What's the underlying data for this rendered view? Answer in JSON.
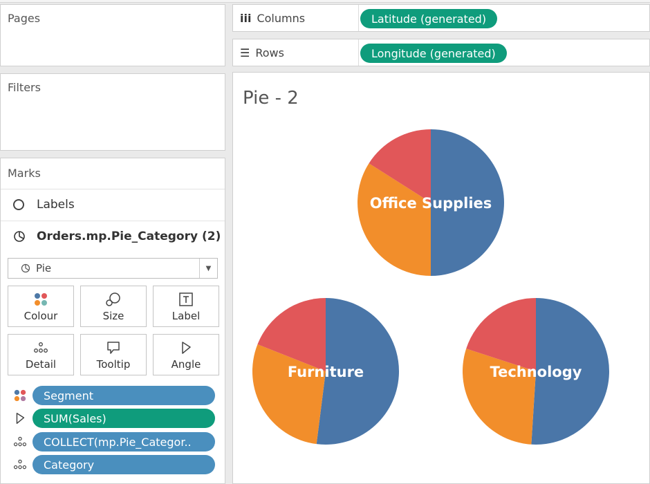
{
  "pages": {
    "title": "Pages"
  },
  "filters": {
    "title": "Filters"
  },
  "shelves": {
    "columns": {
      "label": "Columns",
      "icon": "columns-icon",
      "pill": "Latitude (generated)"
    },
    "rows": {
      "label": "Rows",
      "icon": "rows-icon",
      "pill": "Longitude (generated)"
    }
  },
  "marks": {
    "title": "Marks",
    "labels_row": "Labels",
    "layer_row": "Orders.mp.Pie_Category (2)",
    "mark_type": "Pie",
    "buttons": [
      {
        "label": "Colour",
        "icon": "colour-icon"
      },
      {
        "label": "Size",
        "icon": "size-icon"
      },
      {
        "label": "Label",
        "icon": "label-icon"
      },
      {
        "label": "Detail",
        "icon": "detail-icon"
      },
      {
        "label": "Tooltip",
        "icon": "tooltip-icon"
      },
      {
        "label": "Angle",
        "icon": "angle-icon"
      }
    ],
    "fields": [
      {
        "label": "Segment",
        "icon": "colour-icon",
        "color": "#4a8fbe"
      },
      {
        "label": "SUM(Sales)",
        "icon": "angle-icon",
        "color": "#0f9c7c"
      },
      {
        "label": "COLLECT(mp.Pie_Categor..",
        "icon": "detail-icon",
        "color": "#4a8fbe"
      },
      {
        "label": "Category",
        "icon": "detail-icon",
        "color": "#4a8fbe"
      }
    ]
  },
  "chart_data": {
    "type": "pie",
    "title": "Pie - 2",
    "slice_colors": [
      "#4a76a8",
      "#f28e2b",
      "#e15759"
    ],
    "pies": [
      {
        "label": "Office Supplies",
        "values": [
          50,
          34,
          16
        ]
      },
      {
        "label": "Furniture",
        "values": [
          52,
          29,
          19
        ]
      },
      {
        "label": "Technology",
        "values": [
          51,
          29,
          20
        ]
      }
    ]
  }
}
